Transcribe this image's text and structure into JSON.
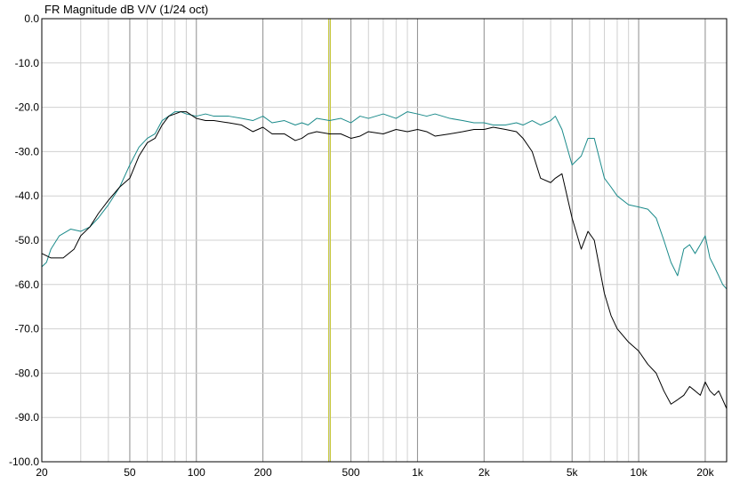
{
  "chart_data": {
    "type": "line",
    "title": "FR Magnitude dB V/V (1/24 oct)",
    "xlabel": "",
    "ylabel": "",
    "x_scale": "log",
    "xlim": [
      20,
      25000
    ],
    "ylim": [
      -100,
      0
    ],
    "grid": true,
    "y_ticks": [
      0,
      -10,
      -20,
      -30,
      -40,
      -50,
      -60,
      -70,
      -80,
      -90,
      -100
    ],
    "y_tick_labels": [
      "0.0",
      "-10.0",
      "-20.0",
      "-30.0",
      "-40.0",
      "-50.0",
      "-60.0",
      "-70.0",
      "-80.0",
      "-90.0",
      "-100.0"
    ],
    "x_ticks": [
      20,
      50,
      100,
      200,
      500,
      1000,
      2000,
      5000,
      10000,
      20000
    ],
    "x_tick_labels": [
      "20",
      "50",
      "100",
      "200",
      "500",
      "1k",
      "2k",
      "5k",
      "10k",
      "20k"
    ],
    "marker_frequency": 400,
    "colors": {
      "series_teal": "#1a8a8a",
      "series_black": "#000000",
      "marker": "#c8c83c",
      "grid_minor": "#d0d0d0",
      "grid_major": "#8c8c8c"
    },
    "series": [
      {
        "color": "#1a8a8a",
        "x": [
          20,
          21,
          22,
          24,
          27,
          30,
          33,
          36,
          40,
          45,
          50,
          55,
          60,
          65,
          70,
          75,
          80,
          85,
          90,
          100,
          110,
          120,
          140,
          160,
          180,
          200,
          220,
          250,
          280,
          300,
          320,
          350,
          400,
          450,
          500,
          550,
          600,
          700,
          800,
          900,
          1000,
          1100,
          1200,
          1400,
          1600,
          1800,
          2000,
          2200,
          2500,
          2800,
          3000,
          3300,
          3600,
          4000,
          4200,
          4500,
          5000,
          5500,
          5900,
          6300,
          7000,
          7500,
          8000,
          9000,
          10000,
          11000,
          12000,
          13000,
          14000,
          15000,
          16000,
          17000,
          18000,
          19000,
          20000,
          21000,
          22000,
          23000,
          24000,
          25000
        ],
        "y": [
          -56,
          -55,
          -52,
          -49,
          -47.5,
          -48,
          -47,
          -45,
          -42,
          -38,
          -33,
          -29,
          -27,
          -26,
          -23,
          -22,
          -21,
          -21,
          -21.5,
          -22,
          -21.5,
          -22,
          -22,
          -22.5,
          -23,
          -22,
          -23.5,
          -23,
          -24,
          -23.5,
          -24,
          -22.5,
          -23,
          -22.5,
          -23.5,
          -22,
          -22.5,
          -21.5,
          -22.5,
          -21,
          -21.5,
          -22,
          -21.5,
          -22.5,
          -23,
          -23.5,
          -23.5,
          -24,
          -24,
          -23.5,
          -24,
          -23,
          -24,
          -23,
          -22,
          -25,
          -33,
          -31,
          -27,
          -27,
          -36,
          -38,
          -40,
          -42,
          -42.5,
          -43,
          -45,
          -50,
          -55,
          -58,
          -52,
          -51,
          -53,
          -51,
          -49,
          -54,
          -56,
          -58,
          -60,
          -61
        ]
      },
      {
        "color": "#000000",
        "x": [
          20,
          22,
          25,
          28,
          30,
          33,
          36,
          40,
          45,
          50,
          55,
          60,
          65,
          70,
          75,
          80,
          85,
          90,
          100,
          110,
          120,
          140,
          160,
          180,
          200,
          220,
          250,
          280,
          300,
          320,
          350,
          400,
          450,
          500,
          550,
          600,
          700,
          800,
          900,
          1000,
          1100,
          1200,
          1400,
          1600,
          1800,
          2000,
          2200,
          2500,
          2800,
          3000,
          3300,
          3600,
          4000,
          4200,
          4500,
          5000,
          5500,
          5900,
          6300,
          7000,
          7500,
          8000,
          9000,
          10000,
          11000,
          12000,
          13000,
          14000,
          15000,
          16000,
          17000,
          18000,
          19000,
          20000,
          21000,
          22000,
          23000,
          24000,
          25000
        ],
        "y": [
          -53,
          -54,
          -54,
          -52,
          -49,
          -47,
          -44,
          -41,
          -38,
          -36,
          -31,
          -28,
          -27,
          -24,
          -22,
          -21.5,
          -21,
          -21,
          -22.5,
          -23,
          -23,
          -23.5,
          -24,
          -25.5,
          -24.5,
          -26,
          -26,
          -27.5,
          -27,
          -26,
          -25.5,
          -26,
          -26,
          -27,
          -26.5,
          -25.5,
          -26,
          -25,
          -25.5,
          -25,
          -25.5,
          -26.5,
          -26,
          -25.5,
          -25,
          -25,
          -24.5,
          -25,
          -25.5,
          -27,
          -30,
          -36,
          -37,
          -36,
          -35,
          -45,
          -52,
          -48,
          -50,
          -62,
          -67,
          -70,
          -73,
          -75,
          -78,
          -80,
          -84,
          -87,
          -86,
          -85,
          -83,
          -84,
          -85,
          -82,
          -84,
          -85,
          -84,
          -86,
          -88
        ]
      }
    ]
  }
}
